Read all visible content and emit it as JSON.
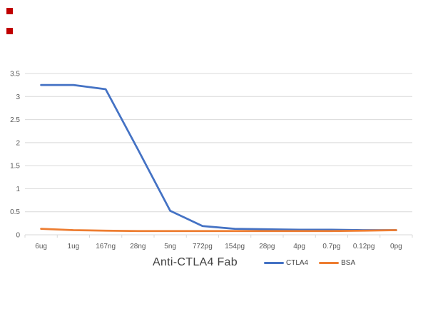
{
  "chart_data": {
    "type": "line",
    "title": "Anti-CTLA4 Fab",
    "title_position": "bottom",
    "categories": [
      "6ug",
      "1ug",
      "167ng",
      "28ng",
      "5ng",
      "772pg",
      "154pg",
      "28pg",
      "4pg",
      "0.7pg",
      "0.12pg",
      "0pg"
    ],
    "series": [
      {
        "name": "CTLA4",
        "color": "#4472C4",
        "values": [
          3.25,
          3.25,
          3.16,
          1.85,
          0.52,
          0.19,
          0.13,
          0.12,
          0.11,
          0.11,
          0.1,
          0.1
        ]
      },
      {
        "name": "BSA",
        "color": "#ED7D31",
        "values": [
          0.13,
          0.1,
          0.09,
          0.08,
          0.08,
          0.08,
          0.08,
          0.08,
          0.08,
          0.08,
          0.09,
          0.1
        ]
      }
    ],
    "ylim": [
      0,
      3.5
    ],
    "ytick_step": 0.5,
    "y_tick_labels": [
      "0",
      "0.5",
      "1",
      "1.5",
      "2",
      "2.5",
      "3",
      "3.5"
    ],
    "grid": "horizontal",
    "legend_position": "bottom",
    "gridline_color": "#D9D9D9",
    "axis_label_color": "#595959",
    "title_color": "#404040"
  },
  "legend": {
    "items": [
      {
        "label": "CTLA4",
        "color": "#4472C4"
      },
      {
        "label": "BSA",
        "color": "#ED7D31"
      }
    ]
  },
  "decorations": {
    "marker_color": "#C00000"
  }
}
